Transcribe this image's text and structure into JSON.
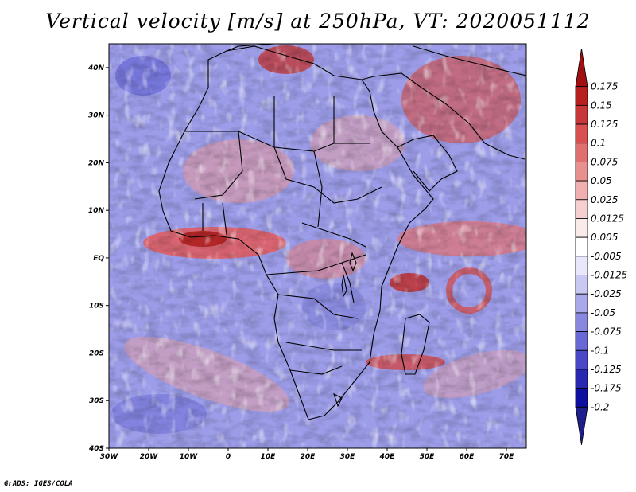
{
  "title": "Vertical velocity [m/s] at 250hPa, VT: 2020051112",
  "credit": "GrADS: IGES/COLA",
  "map": {
    "lat_labels": [
      "40N",
      "30N",
      "20N",
      "10N",
      "EQ",
      "10S",
      "20S",
      "30S",
      "40S"
    ],
    "lon_labels": [
      "30W",
      "20W",
      "10W",
      "0",
      "10E",
      "20E",
      "30E",
      "40E",
      "50E",
      "60E",
      "70E"
    ],
    "lat_range": [
      -40,
      45
    ],
    "lon_range": [
      -30,
      75
    ]
  },
  "colorbar": {
    "labels": [
      "0.175",
      "0.15",
      "0.125",
      "0.1",
      "0.075",
      "0.05",
      "0.025",
      "0.0125",
      "0.005",
      "-0.005",
      "-0.0125",
      "-0.025",
      "-0.05",
      "-0.075",
      "-0.1",
      "-0.125",
      "-0.175",
      "-0.2"
    ],
    "colors": [
      "#a01010",
      "#b82020",
      "#c83838",
      "#d85050",
      "#e07070",
      "#e89090",
      "#f0b0b0",
      "#f6d0d0",
      "#fbeaea",
      "#ffffff",
      "#e8e8fa",
      "#c8c8f2",
      "#a8a8ea",
      "#8888e0",
      "#6868d6",
      "#4848c8",
      "#2828b0",
      "#1010a0",
      "#1e1e8c"
    ]
  }
}
